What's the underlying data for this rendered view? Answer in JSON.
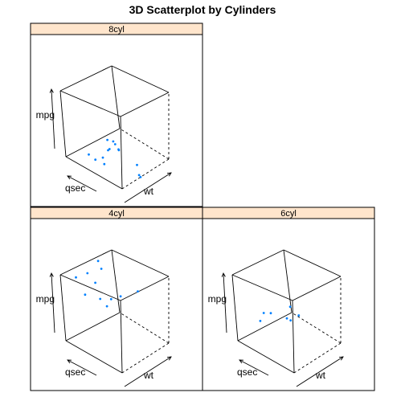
{
  "chart_data": {
    "type": "scatter",
    "title": "3D Scatterplot by Cylinders",
    "axes": {
      "x": "wt",
      "y": "qsec",
      "z": "mpg"
    },
    "box": {
      "bg": "#ffffff",
      "edge_color": "#000000"
    },
    "strip_color": "#ffe5cc",
    "point_color": "#0080ff",
    "panels": [
      {
        "label": "8cyl",
        "points": [
          [
            3.44,
            17.02,
            18.7
          ],
          [
            3.57,
            15.84,
            14.3
          ],
          [
            4.07,
            17.4,
            16.4
          ],
          [
            3.73,
            17.6,
            17.3
          ],
          [
            3.78,
            18.0,
            15.2
          ],
          [
            5.25,
            17.98,
            10.4
          ],
          [
            5.424,
            17.82,
            10.4
          ],
          [
            5.345,
            17.42,
            14.7
          ],
          [
            3.52,
            16.87,
            15.5
          ],
          [
            3.435,
            17.3,
            15.2
          ],
          [
            3.84,
            15.41,
            13.3
          ],
          [
            3.845,
            17.05,
            19.2
          ],
          [
            3.17,
            14.5,
            15.8
          ],
          [
            3.57,
            14.6,
            15.0
          ]
        ]
      },
      {
        "label": "4cyl",
        "points": [
          [
            2.32,
            18.61,
            22.8
          ],
          [
            3.19,
            20.0,
            24.4
          ],
          [
            3.15,
            22.9,
            22.8
          ],
          [
            2.2,
            19.47,
            32.4
          ],
          [
            1.615,
            18.52,
            30.4
          ],
          [
            1.835,
            19.9,
            33.9
          ],
          [
            2.465,
            20.01,
            21.5
          ],
          [
            1.935,
            18.9,
            27.3
          ],
          [
            2.14,
            16.7,
            26.0
          ],
          [
            1.513,
            16.9,
            30.4
          ],
          [
            2.78,
            18.6,
            21.4
          ]
        ]
      },
      {
        "label": "6cyl",
        "points": [
          [
            2.62,
            16.46,
            21.0
          ],
          [
            2.875,
            17.02,
            21.0
          ],
          [
            3.215,
            19.44,
            21.4
          ],
          [
            3.46,
            20.22,
            18.1
          ],
          [
            3.44,
            18.3,
            19.2
          ],
          [
            3.44,
            18.9,
            17.8
          ],
          [
            2.77,
            15.5,
            19.7
          ]
        ]
      }
    ]
  }
}
